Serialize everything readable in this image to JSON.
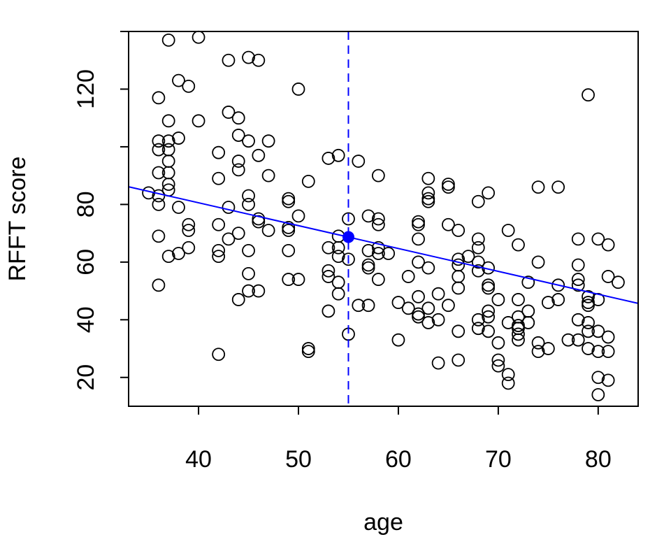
{
  "chart_data": {
    "type": "scatter",
    "xlabel": "age",
    "ylabel": "RFFT score",
    "xlim": [
      33,
      84
    ],
    "ylim": [
      10,
      140
    ],
    "xticks": [
      "40",
      "50",
      "60",
      "70",
      "80"
    ],
    "yticks": [
      "20",
      "40",
      "60",
      "80",
      "120"
    ],
    "ytick_marks": [
      20,
      40,
      60,
      80,
      100,
      120,
      140
    ],
    "grid": false,
    "colors": {
      "points": "#000000",
      "overlay": "#0000ff"
    },
    "series": [
      {
        "points": [
          [
            35,
            84
          ],
          [
            36,
            117
          ],
          [
            36,
            102
          ],
          [
            36,
            99
          ],
          [
            36,
            91
          ],
          [
            36,
            83
          ],
          [
            36,
            80
          ],
          [
            36,
            69
          ],
          [
            36,
            52
          ],
          [
            37,
            137
          ],
          [
            37,
            109
          ],
          [
            37,
            102
          ],
          [
            37,
            99
          ],
          [
            37,
            95
          ],
          [
            37,
            91
          ],
          [
            37,
            87
          ],
          [
            37,
            85
          ],
          [
            37,
            62
          ],
          [
            38,
            123
          ],
          [
            38,
            103
          ],
          [
            38,
            79
          ],
          [
            38,
            63
          ],
          [
            39,
            121
          ],
          [
            39,
            73
          ],
          [
            39,
            71
          ],
          [
            39,
            65
          ],
          [
            40,
            138
          ],
          [
            40,
            109
          ],
          [
            42,
            98
          ],
          [
            42,
            89
          ],
          [
            42,
            73
          ],
          [
            42,
            64
          ],
          [
            42,
            62
          ],
          [
            42,
            28
          ],
          [
            43,
            130
          ],
          [
            43,
            112
          ],
          [
            43,
            79
          ],
          [
            43,
            68
          ],
          [
            44,
            110
          ],
          [
            44,
            104
          ],
          [
            44,
            95
          ],
          [
            44,
            92
          ],
          [
            44,
            70
          ],
          [
            44,
            47
          ],
          [
            45,
            131
          ],
          [
            45,
            102
          ],
          [
            45,
            83
          ],
          [
            45,
            80
          ],
          [
            45,
            64
          ],
          [
            45,
            56
          ],
          [
            45,
            50
          ],
          [
            46,
            130
          ],
          [
            46,
            97
          ],
          [
            46,
            75
          ],
          [
            46,
            74
          ],
          [
            46,
            50
          ],
          [
            47,
            102
          ],
          [
            47,
            90
          ],
          [
            47,
            71
          ],
          [
            49,
            82
          ],
          [
            49,
            81
          ],
          [
            49,
            72
          ],
          [
            49,
            71
          ],
          [
            49,
            64
          ],
          [
            49,
            54
          ],
          [
            50,
            120
          ],
          [
            50,
            76
          ],
          [
            50,
            54
          ],
          [
            51,
            88
          ],
          [
            51,
            30
          ],
          [
            51,
            29
          ],
          [
            53,
            96
          ],
          [
            53,
            65
          ],
          [
            53,
            57
          ],
          [
            53,
            55
          ],
          [
            53,
            43
          ],
          [
            54,
            97
          ],
          [
            54,
            69
          ],
          [
            54,
            65
          ],
          [
            54,
            62
          ],
          [
            54,
            53
          ],
          [
            54,
            49
          ],
          [
            55,
            75
          ],
          [
            55,
            61
          ],
          [
            55,
            35
          ],
          [
            56,
            95
          ],
          [
            56,
            45
          ],
          [
            57,
            76
          ],
          [
            57,
            64
          ],
          [
            57,
            59
          ],
          [
            57,
            58
          ],
          [
            57,
            45
          ],
          [
            58,
            90
          ],
          [
            58,
            75
          ],
          [
            58,
            73
          ],
          [
            58,
            65
          ],
          [
            58,
            63
          ],
          [
            58,
            54
          ],
          [
            59,
            63
          ],
          [
            60,
            46
          ],
          [
            60,
            33
          ],
          [
            61,
            55
          ],
          [
            61,
            44
          ],
          [
            62,
            74
          ],
          [
            62,
            73
          ],
          [
            62,
            68
          ],
          [
            62,
            60
          ],
          [
            62,
            48
          ],
          [
            62,
            42
          ],
          [
            62,
            41
          ],
          [
            63,
            89
          ],
          [
            63,
            84
          ],
          [
            63,
            82
          ],
          [
            63,
            81
          ],
          [
            63,
            58
          ],
          [
            63,
            44
          ],
          [
            63,
            39
          ],
          [
            64,
            49
          ],
          [
            64,
            40
          ],
          [
            64,
            25
          ],
          [
            65,
            87
          ],
          [
            65,
            86
          ],
          [
            65,
            73
          ],
          [
            65,
            45
          ],
          [
            66,
            71
          ],
          [
            66,
            61
          ],
          [
            66,
            59
          ],
          [
            66,
            55
          ],
          [
            66,
            51
          ],
          [
            66,
            36
          ],
          [
            66,
            26
          ],
          [
            67,
            62
          ],
          [
            68,
            81
          ],
          [
            68,
            68
          ],
          [
            68,
            65
          ],
          [
            68,
            60
          ],
          [
            68,
            57
          ],
          [
            68,
            40
          ],
          [
            68,
            37
          ],
          [
            69,
            84
          ],
          [
            69,
            58
          ],
          [
            69,
            52
          ],
          [
            69,
            51
          ],
          [
            69,
            43
          ],
          [
            69,
            41
          ],
          [
            69,
            36
          ],
          [
            70,
            47
          ],
          [
            70,
            32
          ],
          [
            70,
            26
          ],
          [
            70,
            24
          ],
          [
            71,
            71
          ],
          [
            71,
            39
          ],
          [
            71,
            21
          ],
          [
            71,
            18
          ],
          [
            72,
            66
          ],
          [
            72,
            47
          ],
          [
            72,
            41
          ],
          [
            72,
            38
          ],
          [
            72,
            37
          ],
          [
            72,
            35
          ],
          [
            72,
            33
          ],
          [
            73,
            53
          ],
          [
            73,
            43
          ],
          [
            73,
            39
          ],
          [
            74,
            86
          ],
          [
            74,
            60
          ],
          [
            74,
            32
          ],
          [
            74,
            29
          ],
          [
            75,
            46
          ],
          [
            75,
            30
          ],
          [
            76,
            86
          ],
          [
            76,
            52
          ],
          [
            76,
            47
          ],
          [
            77,
            33
          ],
          [
            78,
            68
          ],
          [
            78,
            59
          ],
          [
            78,
            54
          ],
          [
            78,
            52
          ],
          [
            78,
            40
          ],
          [
            78,
            33
          ],
          [
            79,
            118
          ],
          [
            79,
            48
          ],
          [
            79,
            46
          ],
          [
            79,
            45
          ],
          [
            79,
            39
          ],
          [
            79,
            36
          ],
          [
            79,
            30
          ],
          [
            80,
            68
          ],
          [
            80,
            47
          ],
          [
            80,
            36
          ],
          [
            80,
            29
          ],
          [
            80,
            20
          ],
          [
            80,
            14
          ],
          [
            81,
            66
          ],
          [
            81,
            55
          ],
          [
            81,
            34
          ],
          [
            81,
            29
          ],
          [
            81,
            19
          ],
          [
            82,
            53
          ]
        ]
      }
    ],
    "regression_line": {
      "slope": -0.793,
      "intercept": 112.3
    },
    "reference_vline": {
      "x": 55,
      "style": "dashed"
    },
    "highlight_point": {
      "x": 55,
      "y": 68.7
    }
  }
}
